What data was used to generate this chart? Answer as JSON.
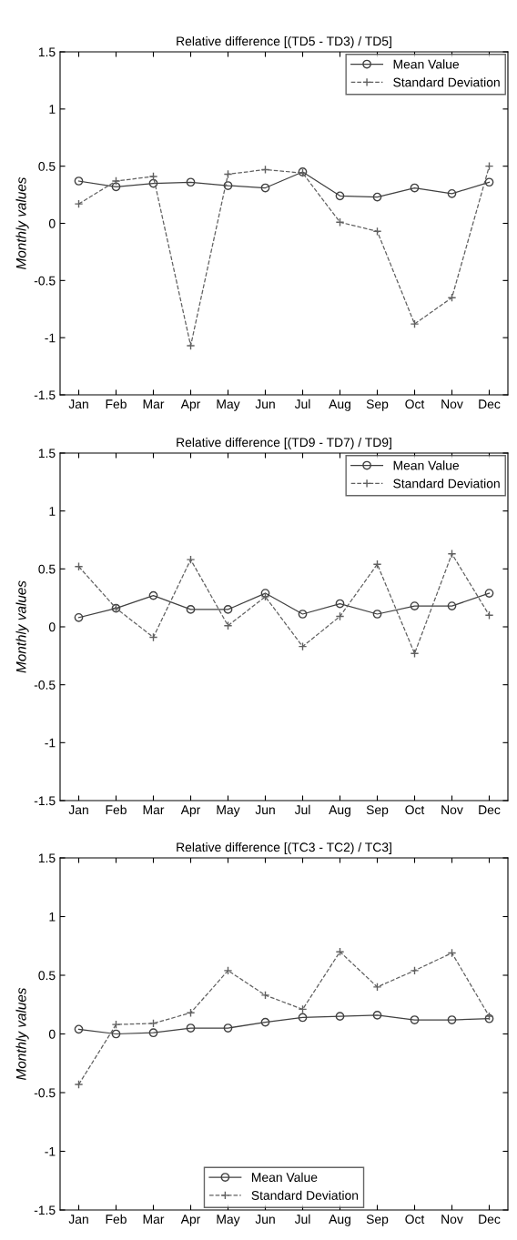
{
  "chart_data": [
    {
      "type": "line",
      "title": "Relative difference [(TD5 - TD3) / TD5]",
      "ylabel": "Monthly values",
      "categories": [
        "Jan",
        "Feb",
        "Mar",
        "Apr",
        "May",
        "Jun",
        "Jul",
        "Aug",
        "Sep",
        "Oct",
        "Nov",
        "Dec"
      ],
      "series": [
        {
          "name": "Mean Value",
          "color": "#404040",
          "marker": "circle",
          "line_style": "solid",
          "values": [
            0.37,
            0.32,
            0.35,
            0.36,
            0.33,
            0.31,
            0.45,
            0.24,
            0.23,
            0.31,
            0.26,
            0.36
          ]
        },
        {
          "name": "Standard Deviation",
          "color": "#606060",
          "marker": "cross",
          "line_style": "dashed",
          "values": [
            0.17,
            0.37,
            0.41,
            -1.07,
            0.43,
            0.47,
            0.44,
            0.01,
            -0.07,
            -0.88,
            -0.65,
            0.5
          ]
        }
      ],
      "ylim": [
        -1.5,
        1.5
      ],
      "yticks": [
        {
          "value": -1.5,
          "label": "-1.5"
        },
        {
          "value": -1,
          "label": "-1"
        },
        {
          "value": -0.5,
          "label": "-0.5"
        },
        0,
        0.5,
        1,
        1.5
      ],
      "legend": "top right",
      "grid": false
    },
    {
      "type": "line",
      "title": "Relative difference [(TD9 - TD7) / TD9]",
      "ylabel": "Monthly values",
      "categories": [
        "Jan",
        "Feb",
        "Mar",
        "Apr",
        "May",
        "Jun",
        "Jul",
        "Aug",
        "Sep",
        "Oct",
        "Nov",
        "Dec"
      ],
      "series": [
        {
          "name": "Mean Value",
          "color": "#404040",
          "marker": "circle",
          "line_style": "solid",
          "values": [
            0.08,
            0.16,
            0.27,
            0.15,
            0.15,
            0.29,
            0.11,
            0.2,
            0.11,
            0.18,
            0.18,
            0.29
          ]
        },
        {
          "name": "Standard Deviation",
          "color": "#606060",
          "marker": "cross",
          "line_style": "dashed",
          "values": [
            0.52,
            0.16,
            -0.09,
            0.58,
            0.01,
            0.26,
            -0.17,
            0.09,
            0.54,
            -0.23,
            0.63,
            0.1
          ]
        }
      ],
      "ylim": [
        -1.5,
        1.5
      ],
      "yticks": [
        {
          "value": -1.5,
          "label": "-1.5"
        },
        {
          "value": -1,
          "label": "-1"
        },
        {
          "value": -0.5,
          "label": "-0.5"
        },
        0,
        0.5,
        1,
        1.5
      ],
      "legend": "top right",
      "grid": false
    },
    {
      "type": "line",
      "title": "Relative difference [(TC3 - TC2) / TC3]",
      "ylabel": "Monthly values",
      "categories": [
        "Jan",
        "Feb",
        "Mar",
        "Apr",
        "May",
        "Jun",
        "Jul",
        "Aug",
        "Sep",
        "Oct",
        "Nov",
        "Dec"
      ],
      "series": [
        {
          "name": "Mean Value",
          "color": "#404040",
          "marker": "circle",
          "line_style": "solid",
          "values": [
            0.04,
            0.0,
            0.01,
            0.05,
            0.05,
            0.1,
            0.14,
            0.15,
            0.16,
            0.12,
            0.12,
            0.13
          ]
        },
        {
          "name": "Standard Deviation",
          "color": "#606060",
          "marker": "cross",
          "line_style": "dashed",
          "values": [
            -0.43,
            0.08,
            0.09,
            0.18,
            0.54,
            0.33,
            0.21,
            0.7,
            0.4,
            0.54,
            0.69,
            0.15
          ]
        }
      ],
      "ylim": [
        -1.5,
        1.5
      ],
      "yticks": [
        {
          "value": -1.5,
          "label": "-1.5"
        },
        {
          "value": -1,
          "label": "-1"
        },
        {
          "value": -0.5,
          "label": "-0.5"
        },
        0,
        0.5,
        1,
        1.5
      ],
      "legend": "bottom",
      "grid": false
    }
  ]
}
